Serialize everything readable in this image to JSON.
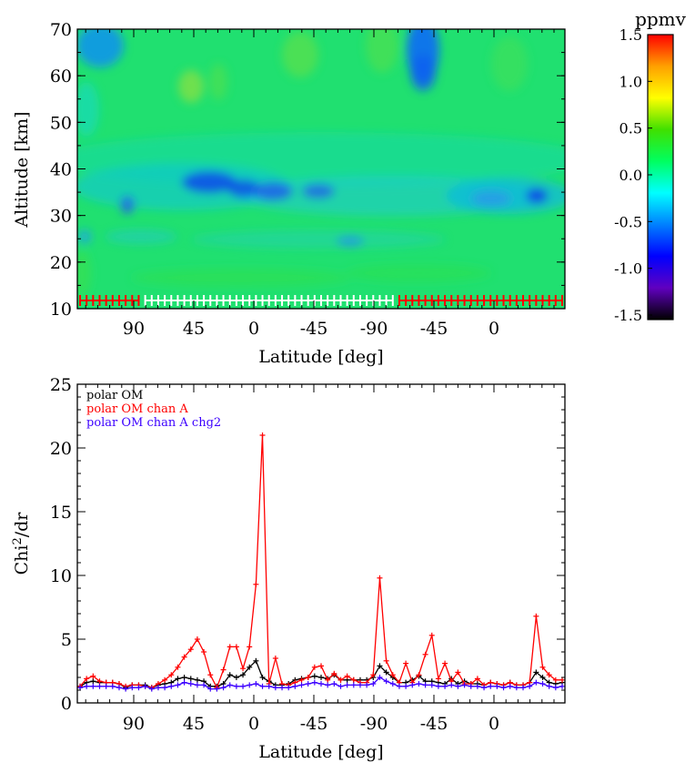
{
  "chart_data": [
    {
      "type": "heatmap",
      "xlabel": "Latitude [deg]",
      "ylabel": "Altitude [km]",
      "ylim": [
        10,
        70
      ],
      "yticks": [
        10,
        20,
        30,
        40,
        50,
        60,
        70
      ],
      "xtick_labels": [
        "90",
        "45",
        "0",
        "-45",
        "-90",
        "-45",
        "0"
      ],
      "colorbar": {
        "label": "ppmv",
        "range": [
          -1.5,
          1.5
        ],
        "ticks": [
          "1.5",
          "1.0",
          "0.5",
          "0.0",
          "-0.5",
          "-1.0",
          "-1.5"
        ],
        "colors": [
          "#ff0000",
          "#ffa000",
          "#ffff00",
          "#40e000",
          "#00ff60",
          "#00ffff",
          "#0080ff",
          "#0000ff",
          "#6000c0",
          "#000000"
        ]
      },
      "grid": false,
      "note_markers": {
        "segments": [
          {
            "color": "#ff0000",
            "from_index": 0,
            "to_index": 9
          },
          {
            "color": "#ffffff",
            "from_index": 10,
            "to_index": 48
          },
          {
            "color": "#ff0000",
            "from_index": 49,
            "to_index": 74
          }
        ]
      }
    },
    {
      "type": "line",
      "xlabel": "Latitude [deg]",
      "ylabel": "Chi²/dr",
      "ylim": [
        0,
        25
      ],
      "yticks": [
        0,
        5,
        10,
        15,
        20,
        25
      ],
      "xtick_labels": [
        "90",
        "45",
        "0",
        "-45",
        "-90",
        "-45",
        "0"
      ],
      "legend_position": "top-left",
      "series": [
        {
          "name": "polar OM",
          "color": "#000000",
          "values": [
            1.3,
            1.6,
            1.7,
            1.6,
            1.6,
            1.6,
            1.5,
            1.2,
            1.4,
            1.4,
            1.4,
            1.2,
            1.4,
            1.5,
            1.6,
            1.9,
            2.0,
            1.9,
            1.8,
            1.7,
            1.3,
            1.3,
            1.5,
            2.2,
            2.0,
            2.2,
            2.8,
            3.3,
            2.0,
            1.7,
            1.4,
            1.4,
            1.5,
            1.8,
            1.9,
            2.0,
            2.1,
            2.0,
            1.9,
            2.2,
            1.8,
            1.8,
            1.8,
            1.8,
            1.8,
            2.0,
            2.9,
            2.4,
            2.0,
            1.6,
            1.6,
            1.8,
            2.1,
            1.7,
            1.7,
            1.6,
            1.5,
            1.9,
            1.5,
            1.7,
            1.5,
            1.5,
            1.4,
            1.6,
            1.5,
            1.4,
            1.6,
            1.4,
            1.4,
            1.6,
            2.4,
            2.0,
            1.6,
            1.5,
            1.6
          ]
        },
        {
          "name": "polar OM chan A",
          "color": "#ff0000",
          "values": [
            1.3,
            1.9,
            2.1,
            1.7,
            1.6,
            1.6,
            1.5,
            1.3,
            1.4,
            1.4,
            1.3,
            1.2,
            1.5,
            1.8,
            2.2,
            2.8,
            3.6,
            4.2,
            5.0,
            4.0,
            2.2,
            1.2,
            2.6,
            4.4,
            4.4,
            2.7,
            4.4,
            9.3,
            21.0,
            1.5,
            3.5,
            1.5,
            1.4,
            1.6,
            1.8,
            2.0,
            2.8,
            2.9,
            1.8,
            2.3,
            1.8,
            2.1,
            1.8,
            1.6,
            1.6,
            2.2,
            9.8,
            3.3,
            2.2,
            1.6,
            3.1,
            1.6,
            2.2,
            3.8,
            5.3,
            1.9,
            3.1,
            1.7,
            2.4,
            1.5,
            1.5,
            1.9,
            1.4,
            1.6,
            1.5,
            1.4,
            1.6,
            1.4,
            1.4,
            1.6,
            6.8,
            2.8,
            2.2,
            1.8,
            1.8
          ]
        },
        {
          "name": "polar OM chan A chg2",
          "color": "#3c00ff",
          "values": [
            1.2,
            1.3,
            1.3,
            1.3,
            1.3,
            1.3,
            1.2,
            1.1,
            1.2,
            1.2,
            1.3,
            1.1,
            1.2,
            1.2,
            1.3,
            1.4,
            1.6,
            1.5,
            1.4,
            1.4,
            1.1,
            1.1,
            1.2,
            1.4,
            1.3,
            1.3,
            1.4,
            1.5,
            1.3,
            1.3,
            1.2,
            1.2,
            1.2,
            1.3,
            1.4,
            1.5,
            1.6,
            1.5,
            1.4,
            1.5,
            1.3,
            1.4,
            1.4,
            1.4,
            1.4,
            1.5,
            2.0,
            1.7,
            1.5,
            1.3,
            1.3,
            1.4,
            1.5,
            1.4,
            1.4,
            1.3,
            1.3,
            1.4,
            1.3,
            1.4,
            1.3,
            1.3,
            1.2,
            1.3,
            1.3,
            1.2,
            1.3,
            1.2,
            1.2,
            1.3,
            1.6,
            1.5,
            1.3,
            1.2,
            1.3
          ]
        }
      ]
    }
  ]
}
